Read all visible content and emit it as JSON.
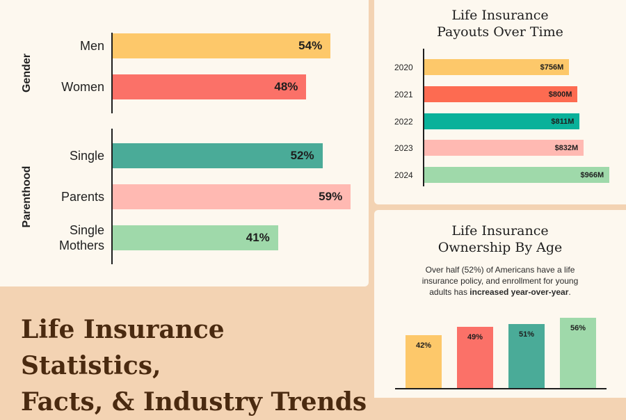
{
  "main_title": {
    "line1": "Life Insurance Statistics,",
    "line2": "Facts, & Industry Trends"
  },
  "colors": {
    "yellow": "#fdc86a",
    "coral": "#fb7168",
    "red": "#fd6b51",
    "teal": "#4aab98",
    "teal_dark": "#0ab19a",
    "pink": "#ffb9b2",
    "green": "#9fd9aa"
  },
  "chart_data": [
    {
      "type": "bar",
      "orientation": "horizontal",
      "groups": [
        {
          "label": "Gender",
          "categories": [
            "Men",
            "Women"
          ],
          "values": [
            54,
            48
          ],
          "value_labels": [
            "54%",
            "48%"
          ],
          "colors": [
            "#fdc86a",
            "#fb7168"
          ]
        },
        {
          "label": "Parenthood",
          "categories": [
            "Single",
            "Parents",
            "Single Mothers"
          ],
          "values": [
            52,
            59,
            41
          ],
          "value_labels": [
            "52%",
            "59%",
            "41%"
          ],
          "colors": [
            "#4aab98",
            "#ffb9b2",
            "#9fd9aa"
          ]
        }
      ]
    },
    {
      "type": "bar",
      "orientation": "horizontal",
      "title_line1": "Life Insurance",
      "title_line2": "Payouts Over Time",
      "categories": [
        "2020",
        "2021",
        "2022",
        "2023",
        "2024"
      ],
      "values": [
        756,
        800,
        811,
        832,
        966
      ],
      "value_labels": [
        "$756M",
        "$800M",
        "$811M",
        "$832M",
        "$966M"
      ],
      "colors": [
        "#fdc86a",
        "#fd6b51",
        "#0ab19a",
        "#ffb9b2",
        "#9fd9aa"
      ]
    },
    {
      "type": "bar",
      "orientation": "vertical",
      "title_line1": "Life Insurance",
      "title_line2": "Ownership By Age",
      "description_before": "Over half (52%) of Americans have a life insurance policy, and enrollment for young adults has ",
      "description_bold": "increased year-over-year",
      "description_after": ".",
      "values": [
        42,
        49,
        51,
        56
      ],
      "value_labels": [
        "42%",
        "49%",
        "51%",
        "56%"
      ],
      "colors": [
        "#fdc86a",
        "#fb7168",
        "#4aab98",
        "#9fd9aa"
      ]
    }
  ]
}
